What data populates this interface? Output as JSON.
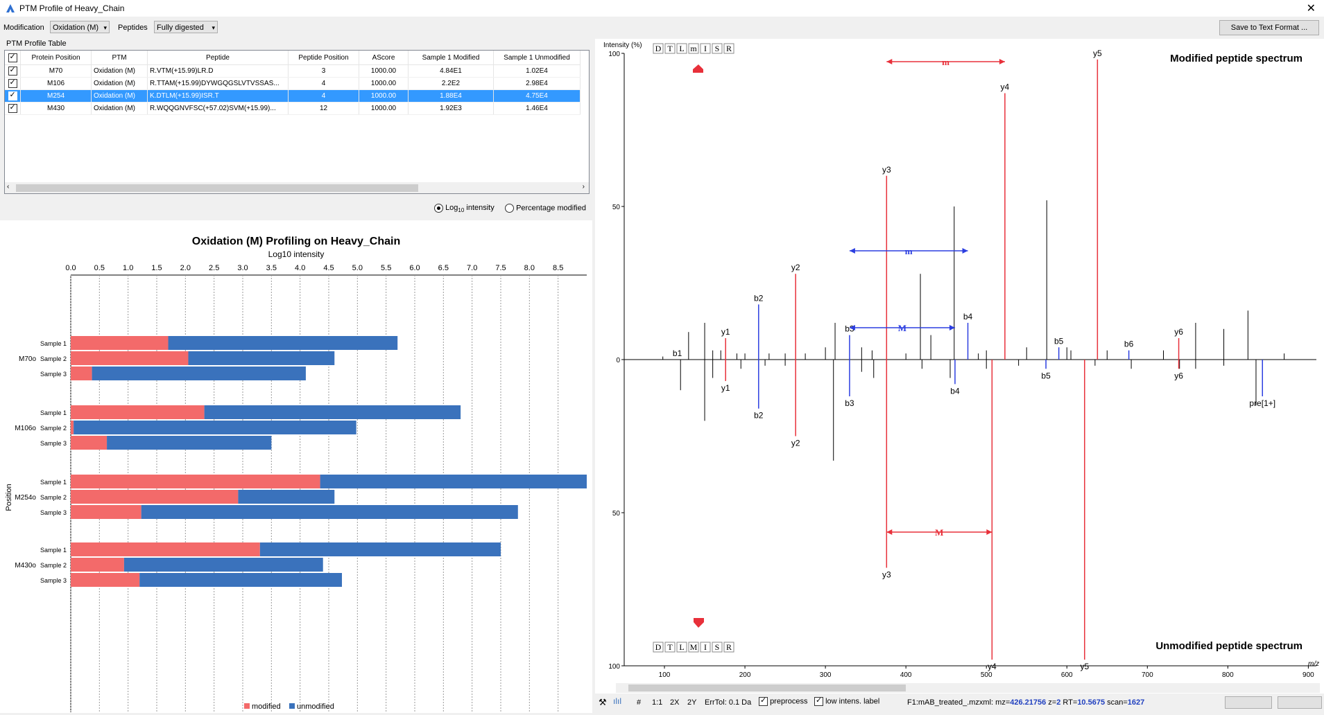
{
  "window": {
    "title": "PTM Profile of Heavy_Chain"
  },
  "toolbar": {
    "modification_label": "Modification",
    "modification_value": "Oxidation (M)",
    "peptides_label": "Peptides",
    "peptides_value": "Fully digested",
    "save_label": "Save to Text Format ..."
  },
  "table": {
    "title": "PTM Profile Table",
    "columns": [
      "Protein Position",
      "PTM",
      "Peptide",
      "Peptide Position",
      "AScore",
      "Sample 1 Modified",
      "Sample 1 Unmodified"
    ],
    "rows": [
      {
        "checked": true,
        "position": "M70",
        "ptm": "Oxidation (M)",
        "peptide": "R.VTM(+15.99)LR.D",
        "peptide_position": "3",
        "ascore": "1000.00",
        "s1_mod": "4.84E1",
        "s1_unmod": "1.02E4",
        "selected": false
      },
      {
        "checked": true,
        "position": "M106",
        "ptm": "Oxidation (M)",
        "peptide": "R.TTAM(+15.99)DYWGQGSLVTVSSAS...",
        "peptide_position": "4",
        "ascore": "1000.00",
        "s1_mod": "2.2E2",
        "s1_unmod": "2.98E4",
        "selected": false
      },
      {
        "checked": true,
        "position": "M254",
        "ptm": "Oxidation (M)",
        "peptide": "K.DTLM(+15.99)ISR.T",
        "peptide_position": "4",
        "ascore": "1000.00",
        "s1_mod": "1.88E4",
        "s1_unmod": "4.75E4",
        "selected": true
      },
      {
        "checked": true,
        "position": "M430",
        "ptm": "Oxidation (M)",
        "peptide": "R.WQQGNVFSC(+57.02)SVM(+15.99)...",
        "peptide_position": "12",
        "ascore": "1000.00",
        "s1_mod": "1.92E3",
        "s1_unmod": "1.46E4",
        "selected": false
      }
    ]
  },
  "view_options": {
    "log_label_main": "Log",
    "log_label_sub": "10",
    "log_label_tail": " intensity",
    "pct_label": "Percentage modified"
  },
  "chart_data": {
    "type": "bar",
    "orientation": "horizontal-stacked",
    "title": "Oxidation (M) Profiling on Heavy_Chain",
    "xlabel": "Log10 intensity",
    "ylabel": "Position",
    "xlim": [
      0,
      9.0
    ],
    "xticks": [
      "0.0",
      "0.5",
      "1.0",
      "1.5",
      "2.0",
      "2.5",
      "3.0",
      "3.5",
      "4.0",
      "4.5",
      "5.0",
      "5.5",
      "6.0",
      "6.5",
      "7.0",
      "7.5",
      "8.0",
      "8.5"
    ],
    "grid": true,
    "legend": "bottom",
    "colors": {
      "modified": "#f36a6a",
      "unmodified": "#3a72bc"
    },
    "legend_labels": [
      "modified",
      "unmodified"
    ],
    "groups": [
      {
        "label": "M70o",
        "samples": [
          {
            "name": "Sample 1",
            "modified": 1.7,
            "total": 5.7
          },
          {
            "name": "Sample 2",
            "modified": 2.05,
            "total": 4.6
          },
          {
            "name": "Sample 3",
            "modified": 0.37,
            "total": 4.1
          }
        ]
      },
      {
        "label": "M106o",
        "samples": [
          {
            "name": "Sample 1",
            "modified": 2.33,
            "total": 6.8
          },
          {
            "name": "Sample 2",
            "modified": 0.05,
            "total": 4.98
          },
          {
            "name": "Sample 3",
            "modified": 0.63,
            "total": 3.5
          }
        ]
      },
      {
        "label": "M254o",
        "samples": [
          {
            "name": "Sample 1",
            "modified": 4.35,
            "total": 9.0
          },
          {
            "name": "Sample 2",
            "modified": 2.92,
            "total": 4.6
          },
          {
            "name": "Sample 3",
            "modified": 1.23,
            "total": 7.8
          }
        ]
      },
      {
        "label": "M430o",
        "samples": [
          {
            "name": "Sample 1",
            "modified": 3.3,
            "total": 7.5
          },
          {
            "name": "Sample 2",
            "modified": 0.93,
            "total": 4.4
          },
          {
            "name": "Sample 3",
            "modified": 1.2,
            "total": 4.73
          }
        ]
      }
    ]
  },
  "spectrum": {
    "ylabel": "Intensity (%)",
    "xlabel": "m/z",
    "top_title": "Modified peptide spectrum",
    "bottom_title": "Unmodified peptide spectrum",
    "top_sequence": [
      "D",
      "T",
      "L",
      "m",
      "I",
      "S",
      "R"
    ],
    "bottom_sequence": [
      "D",
      "T",
      "L",
      "M",
      "I",
      "S",
      "R"
    ],
    "y_ticks_top": [
      "100",
      "50",
      "0"
    ],
    "y_ticks_bottom": [
      "50",
      "100"
    ],
    "x_ticks": [
      "100",
      "200",
      "300",
      "400",
      "500",
      "600",
      "700",
      "800",
      "900"
    ],
    "xlim": [
      50,
      910
    ],
    "colors": {
      "y_ion": "#e8303a",
      "b_ion": "#2b3ee0",
      "noise": "#000000"
    },
    "top_ions": [
      {
        "label": "y1",
        "mz": 176,
        "pct": 7,
        "type": "y"
      },
      {
        "label": "y2",
        "mz": 263,
        "pct": 28,
        "type": "y"
      },
      {
        "label": "y3",
        "mz": 376,
        "pct": 60,
        "type": "y"
      },
      {
        "label": "y4",
        "mz": 523,
        "pct": 87,
        "type": "y"
      },
      {
        "label": "y5",
        "mz": 638,
        "pct": 98,
        "type": "y"
      },
      {
        "label": "y6",
        "mz": 739,
        "pct": 7,
        "type": "y"
      },
      {
        "label": "b1",
        "mz": 116,
        "pct": 0,
        "type": "b"
      },
      {
        "label": "b2",
        "mz": 217,
        "pct": 18,
        "type": "b"
      },
      {
        "label": "b3",
        "mz": 330,
        "pct": 8,
        "type": "b"
      },
      {
        "label": "b4",
        "mz": 477,
        "pct": 12,
        "type": "b"
      },
      {
        "label": "b5",
        "mz": 590,
        "pct": 4,
        "type": "b"
      },
      {
        "label": "b6",
        "mz": 677,
        "pct": 3,
        "type": "b"
      }
    ],
    "bottom_ions": [
      {
        "label": "y1",
        "mz": 176,
        "pct": 7,
        "type": "y"
      },
      {
        "label": "y2",
        "mz": 263,
        "pct": 25,
        "type": "y"
      },
      {
        "label": "y3",
        "mz": 376,
        "pct": 68,
        "type": "y"
      },
      {
        "label": "y4",
        "mz": 507,
        "pct": 98,
        "type": "y"
      },
      {
        "label": "y5",
        "mz": 622,
        "pct": 98,
        "type": "y"
      },
      {
        "label": "y6",
        "mz": 739,
        "pct": 3,
        "type": "y"
      },
      {
        "label": "b2",
        "mz": 217,
        "pct": 16,
        "type": "b"
      },
      {
        "label": "b3",
        "mz": 330,
        "pct": 12,
        "type": "b"
      },
      {
        "label": "b4",
        "mz": 461,
        "pct": 8,
        "type": "b"
      },
      {
        "label": "b5",
        "mz": 574,
        "pct": 3,
        "type": "b"
      },
      {
        "label": "pre[1+]",
        "mz": 843,
        "pct": 12,
        "type": "b"
      }
    ],
    "top_noise": [
      {
        "mz": 98,
        "pct": 1
      },
      {
        "mz": 130,
        "pct": 9
      },
      {
        "mz": 150,
        "pct": 12
      },
      {
        "mz": 160,
        "pct": 3
      },
      {
        "mz": 170,
        "pct": 3
      },
      {
        "mz": 190,
        "pct": 2
      },
      {
        "mz": 200,
        "pct": 2
      },
      {
        "mz": 230,
        "pct": 2
      },
      {
        "mz": 250,
        "pct": 2
      },
      {
        "mz": 275,
        "pct": 2
      },
      {
        "mz": 300,
        "pct": 4
      },
      {
        "mz": 312,
        "pct": 12
      },
      {
        "mz": 345,
        "pct": 4
      },
      {
        "mz": 358,
        "pct": 3
      },
      {
        "mz": 400,
        "pct": 2
      },
      {
        "mz": 418,
        "pct": 28
      },
      {
        "mz": 431,
        "pct": 8
      },
      {
        "mz": 460,
        "pct": 50
      },
      {
        "mz": 490,
        "pct": 2
      },
      {
        "mz": 500,
        "pct": 3
      },
      {
        "mz": 550,
        "pct": 4
      },
      {
        "mz": 575,
        "pct": 52
      },
      {
        "mz": 600,
        "pct": 4
      },
      {
        "mz": 605,
        "pct": 3
      },
      {
        "mz": 650,
        "pct": 3
      },
      {
        "mz": 720,
        "pct": 3
      },
      {
        "mz": 760,
        "pct": 12
      },
      {
        "mz": 795,
        "pct": 10
      },
      {
        "mz": 825,
        "pct": 16
      },
      {
        "mz": 870,
        "pct": 2
      }
    ],
    "bottom_noise": [
      {
        "mz": 120,
        "pct": 10
      },
      {
        "mz": 150,
        "pct": 20
      },
      {
        "mz": 160,
        "pct": 6
      },
      {
        "mz": 195,
        "pct": 3
      },
      {
        "mz": 225,
        "pct": 2
      },
      {
        "mz": 250,
        "pct": 2
      },
      {
        "mz": 310,
        "pct": 33
      },
      {
        "mz": 345,
        "pct": 4
      },
      {
        "mz": 360,
        "pct": 6
      },
      {
        "mz": 420,
        "pct": 3
      },
      {
        "mz": 455,
        "pct": 6
      },
      {
        "mz": 500,
        "pct": 3
      },
      {
        "mz": 540,
        "pct": 2
      },
      {
        "mz": 635,
        "pct": 2
      },
      {
        "mz": 680,
        "pct": 3
      },
      {
        "mz": 740,
        "pct": 3
      },
      {
        "mz": 760,
        "pct": 3
      },
      {
        "mz": 795,
        "pct": 2
      },
      {
        "mz": 835,
        "pct": 15
      }
    ],
    "annotations": {
      "top_shift_label": "m",
      "bottom_shift_label": "M",
      "b_shift_top": "m",
      "b_shift_bottom": "M"
    },
    "status": {
      "onetoone": "1:1",
      "twox": "2X",
      "twoy": "2Y",
      "hash": "#",
      "errtol": "ErrTol: 0.1 Da",
      "preprocess": "preprocess",
      "low_intens": "low intens. label",
      "file_prefix": "F1:mAB_treated_.mzxml: mz=",
      "mz": "426.21756",
      "z_prefix": " z=",
      "z": "2",
      "rt_prefix": " RT=",
      "rt": "10.5675",
      "scan_prefix": " scan=",
      "scan": "1627"
    }
  }
}
